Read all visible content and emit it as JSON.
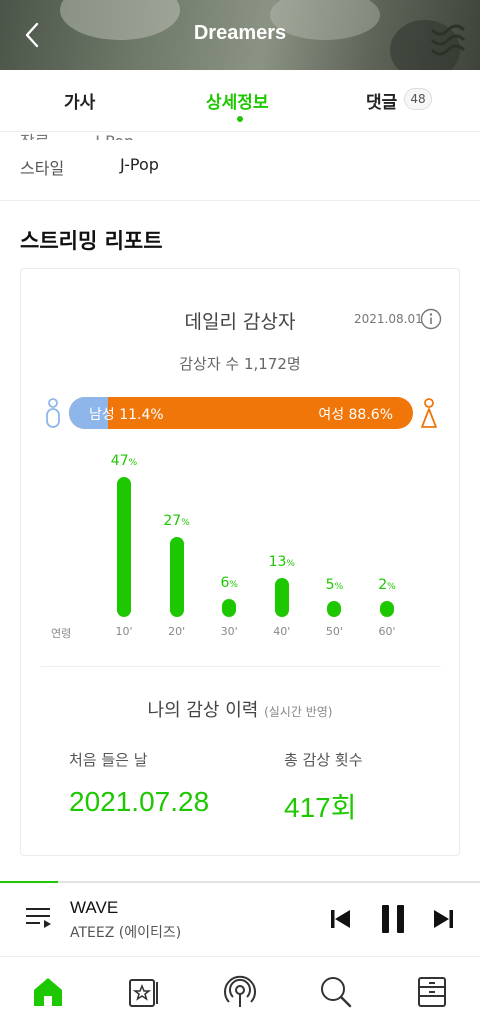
{
  "header": {
    "title": "Dreamers"
  },
  "tabs": [
    {
      "label": "가사"
    },
    {
      "label": "상세정보"
    },
    {
      "label": "댓글",
      "count": "48"
    }
  ],
  "info": {
    "style_label": "스타일",
    "style_value": "J-Pop"
  },
  "section_title": "스트리밍 리포트",
  "daily": {
    "title": "데일리 감상자",
    "date": "2021.08.01",
    "listeners": "감상자 수 1,172명",
    "male_label": "남성 11.4%",
    "female_label": "여성 88.6%",
    "male_ratio": 0.114
  },
  "colors": {
    "accent": "#1ec800",
    "female": "#f0760a",
    "male": "#8fb6ea"
  },
  "age": {
    "axis_label": "연령",
    "bars": [
      {
        "cat": "10'",
        "pct": "47",
        "value": 47
      },
      {
        "cat": "20'",
        "pct": "27",
        "value": 27
      },
      {
        "cat": "30'",
        "pct": "6",
        "value": 6
      },
      {
        "cat": "40'",
        "pct": "13",
        "value": 13
      },
      {
        "cat": "50'",
        "pct": "5",
        "value": 5
      },
      {
        "cat": "60'",
        "pct": "2",
        "value": 2
      }
    ],
    "unit": "%"
  },
  "history": {
    "title": "나의 감상 이력",
    "note": "(실시간 반영)",
    "first_label": "처음 들은 날",
    "first_value": "2021.07.28",
    "total_label": "총 감상 횟수",
    "total_value": "417회"
  },
  "player": {
    "title": "WAVE",
    "artist": "ATEEZ (에이티즈)",
    "progress": 0.12
  },
  "nav": [
    "home-icon",
    "playlist-star-icon",
    "podcast-icon",
    "search-icon",
    "storage-icon"
  ]
}
